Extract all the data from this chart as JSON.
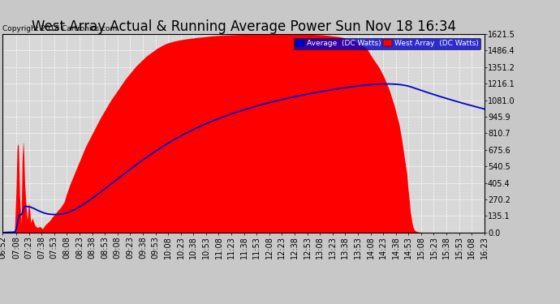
{
  "title": "West Array Actual & Running Average Power Sun Nov 18 16:34",
  "copyright": "Copyright 2018 Cartronics.com",
  "legend_labels": [
    "Average  (DC Watts)",
    "West Array  (DC Watts)"
  ],
  "yticks": [
    0.0,
    135.1,
    270.2,
    405.4,
    540.5,
    675.6,
    810.7,
    945.9,
    1081.0,
    1216.1,
    1351.2,
    1486.4,
    1621.5
  ],
  "ymax": 1621.5,
  "fig_facecolor": "#c8c8c8",
  "plot_bg_color": "#d8d8d8",
  "grid_color": "white",
  "fill_color": "#ff0000",
  "avg_line_color": "#0000cd",
  "title_fontsize": 12,
  "tick_fontsize": 7,
  "west_array_data": [
    [
      6.867,
      0
    ],
    [
      6.9,
      2
    ],
    [
      6.95,
      3
    ],
    [
      7.0,
      4
    ],
    [
      7.05,
      5
    ],
    [
      7.08,
      10
    ],
    [
      7.1,
      8
    ],
    [
      7.13,
      350
    ],
    [
      7.15,
      700
    ],
    [
      7.17,
      730
    ],
    [
      7.18,
      680
    ],
    [
      7.2,
      300
    ],
    [
      7.22,
      150
    ],
    [
      7.23,
      50
    ],
    [
      7.25,
      600
    ],
    [
      7.27,
      750
    ],
    [
      7.28,
      680
    ],
    [
      7.3,
      400
    ],
    [
      7.33,
      200
    ],
    [
      7.35,
      100
    ],
    [
      7.38,
      250
    ],
    [
      7.4,
      180
    ],
    [
      7.42,
      80
    ],
    [
      7.45,
      120
    ],
    [
      7.5,
      60
    ],
    [
      7.55,
      40
    ],
    [
      7.6,
      50
    ],
    [
      7.65,
      30
    ],
    [
      7.7,
      60
    ],
    [
      7.75,
      80
    ],
    [
      7.8,
      100
    ],
    [
      7.85,
      130
    ],
    [
      7.9,
      150
    ],
    [
      7.95,
      180
    ],
    [
      8.0,
      200
    ],
    [
      8.08,
      250
    ],
    [
      8.13,
      320
    ],
    [
      8.2,
      400
    ],
    [
      8.3,
      500
    ],
    [
      8.4,
      600
    ],
    [
      8.5,
      700
    ],
    [
      8.6,
      780
    ],
    [
      8.7,
      860
    ],
    [
      8.8,
      940
    ],
    [
      8.9,
      1010
    ],
    [
      9.0,
      1080
    ],
    [
      9.1,
      1140
    ],
    [
      9.2,
      1200
    ],
    [
      9.3,
      1260
    ],
    [
      9.4,
      1310
    ],
    [
      9.5,
      1360
    ],
    [
      9.6,
      1400
    ],
    [
      9.7,
      1440
    ],
    [
      9.8,
      1470
    ],
    [
      9.9,
      1500
    ],
    [
      10.0,
      1525
    ],
    [
      10.1,
      1545
    ],
    [
      10.2,
      1558
    ],
    [
      10.3,
      1568
    ],
    [
      10.4,
      1576
    ],
    [
      10.5,
      1582
    ],
    [
      10.6,
      1588
    ],
    [
      10.7,
      1593
    ],
    [
      10.8,
      1597
    ],
    [
      10.9,
      1602
    ],
    [
      11.0,
      1606
    ],
    [
      11.1,
      1609
    ],
    [
      11.2,
      1612
    ],
    [
      11.3,
      1614
    ],
    [
      11.4,
      1616
    ],
    [
      11.5,
      1617
    ],
    [
      11.6,
      1618
    ],
    [
      11.7,
      1619
    ],
    [
      11.8,
      1620
    ],
    [
      11.9,
      1620
    ],
    [
      12.0,
      1621
    ],
    [
      12.1,
      1621
    ],
    [
      12.2,
      1621
    ],
    [
      12.3,
      1621
    ],
    [
      12.4,
      1621
    ],
    [
      12.5,
      1621
    ],
    [
      12.6,
      1621
    ],
    [
      12.7,
      1620
    ],
    [
      12.8,
      1620
    ],
    [
      12.9,
      1619
    ],
    [
      13.0,
      1618
    ],
    [
      13.08,
      1617
    ],
    [
      13.13,
      1616
    ],
    [
      13.2,
      1614
    ],
    [
      13.3,
      1610
    ],
    [
      13.4,
      1605
    ],
    [
      13.5,
      1600
    ],
    [
      13.6,
      1592
    ],
    [
      13.7,
      1580
    ],
    [
      13.8,
      1565
    ],
    [
      13.9,
      1545
    ],
    [
      14.0,
      1520
    ],
    [
      14.08,
      1490
    ],
    [
      14.13,
      1455
    ],
    [
      14.2,
      1410
    ],
    [
      14.3,
      1350
    ],
    [
      14.4,
      1270
    ],
    [
      14.5,
      1170
    ],
    [
      14.6,
      1040
    ],
    [
      14.7,
      880
    ],
    [
      14.75,
      760
    ],
    [
      14.8,
      620
    ],
    [
      14.85,
      480
    ],
    [
      14.87,
      380
    ],
    [
      14.9,
      260
    ],
    [
      14.92,
      170
    ],
    [
      14.95,
      90
    ],
    [
      14.97,
      50
    ],
    [
      15.0,
      20
    ],
    [
      15.05,
      8
    ],
    [
      15.1,
      4
    ],
    [
      15.2,
      2
    ],
    [
      15.3,
      1
    ],
    [
      15.5,
      0
    ],
    [
      16.0,
      0
    ],
    [
      16.383,
      0
    ]
  ],
  "x_tick_hours": [
    6.867,
    7.133,
    7.383,
    7.633,
    7.883,
    8.133,
    8.383,
    8.633,
    8.883,
    9.133,
    9.383,
    9.633,
    9.883,
    10.133,
    10.383,
    10.633,
    10.883,
    11.133,
    11.383,
    11.633,
    11.883,
    12.133,
    12.383,
    12.633,
    12.883,
    13.133,
    13.383,
    13.633,
    13.883,
    14.133,
    14.383,
    14.633,
    14.883,
    15.133,
    15.383,
    15.633,
    15.883,
    16.133,
    16.383
  ],
  "x_tick_labels": [
    "06:52",
    "07:08",
    "07:23",
    "07:38",
    "07:53",
    "08:08",
    "08:23",
    "08:38",
    "08:53",
    "09:08",
    "09:23",
    "09:38",
    "09:53",
    "10:08",
    "10:23",
    "10:38",
    "10:53",
    "11:08",
    "11:23",
    "11:38",
    "11:53",
    "12:08",
    "12:23",
    "12:38",
    "12:53",
    "13:08",
    "13:23",
    "13:38",
    "13:53",
    "14:08",
    "14:23",
    "14:38",
    "14:53",
    "15:08",
    "15:23",
    "15:38",
    "15:53",
    "16:08",
    "16:23"
  ]
}
